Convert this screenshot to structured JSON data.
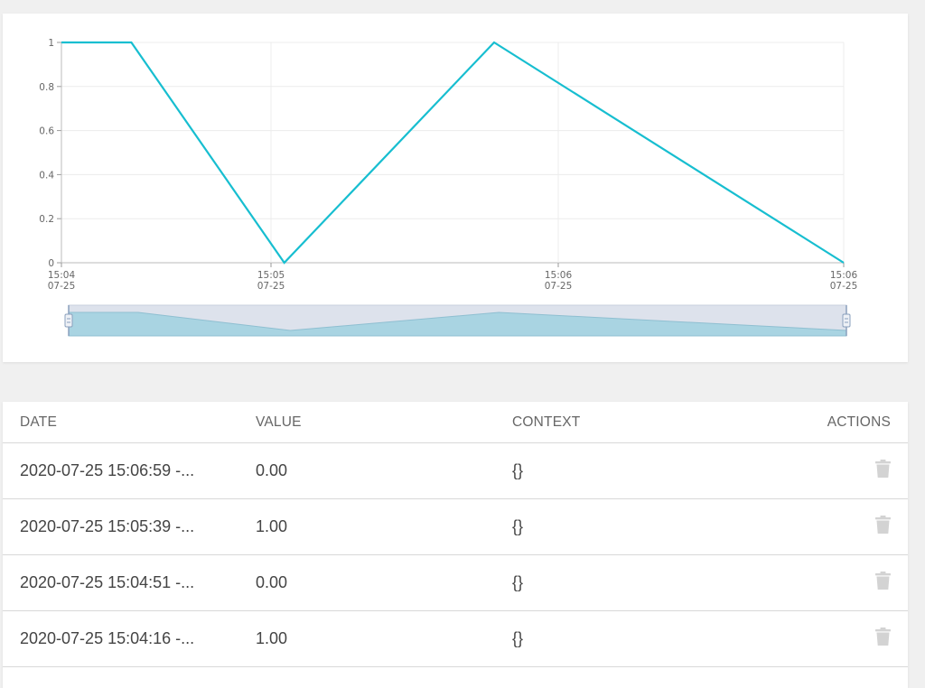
{
  "chart_data": {
    "type": "line",
    "x": [
      "2020-07-25 15:04:00",
      "2020-07-25 15:04:16",
      "2020-07-25 15:04:51",
      "2020-07-25 15:05:39",
      "2020-07-25 15:06:59"
    ],
    "series": [
      {
        "values": [
          1,
          1,
          0,
          1,
          0
        ]
      }
    ],
    "y_ticks": [
      "0",
      "0.2",
      "0.4",
      "0.6",
      "0.8",
      "1"
    ],
    "x_ticks": [
      {
        "time": "15:04",
        "date": "07-25"
      },
      {
        "time": "15:05",
        "date": "07-25"
      },
      {
        "time": "15:06",
        "date": "07-25"
      },
      {
        "time": "15:06",
        "date": "07-25"
      }
    ],
    "ylim": [
      0,
      1
    ],
    "grid": true,
    "line_color": "#17bed0",
    "data_zoom_slider": true
  },
  "table": {
    "headers": {
      "date": "DATE",
      "value": "VALUE",
      "context": "CONTEXT",
      "actions": "ACTIONS"
    },
    "rows": [
      {
        "date": "2020-07-25 15:06:59 -...",
        "value": "0.00",
        "context": "{}",
        "action_icon": "trash-icon"
      },
      {
        "date": "2020-07-25 15:05:39 -...",
        "value": "1.00",
        "context": "{}",
        "action_icon": "trash-icon"
      },
      {
        "date": "2020-07-25 15:04:51 -...",
        "value": "0.00",
        "context": "{}",
        "action_icon": "trash-icon"
      },
      {
        "date": "2020-07-25 15:04:16 -...",
        "value": "1.00",
        "context": "{}",
        "action_icon": "trash-icon"
      }
    ]
  }
}
